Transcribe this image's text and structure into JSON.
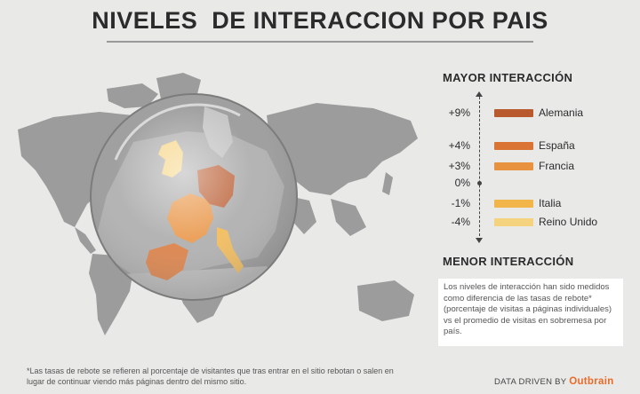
{
  "title": "NIVELES  DE INTERACCION POR PAIS",
  "legend": {
    "top_label": "MAYOR INTERACCIÓN",
    "bottom_label": "MENOR INTERACCIÓN",
    "zero_label": "0%"
  },
  "chart_data": {
    "type": "bar",
    "categories": [
      "Alemania",
      "España",
      "Francia",
      "Italia",
      "Reino Unido"
    ],
    "values": [
      9,
      4,
      3,
      -1,
      -4
    ],
    "value_labels": [
      "+9%",
      "+4%",
      "+3%",
      "-1%",
      "-4%"
    ],
    "colors": [
      "#b85a2e",
      "#d97434",
      "#e8913f",
      "#f2b54a",
      "#f5d27d"
    ],
    "title": "NIVELES  DE INTERACCION POR PAIS"
  },
  "note": "Los niveles de interacción han sido medidos como diferencia de las tasas de rebote* (porcentaje de visitas a páginas individuales) vs el promedio de visitas en sobremesa por país.",
  "footnote": "*Las tasas de rebote se refieren al porcentaje de visitantes que tras entrar en el sitio rebotan o salen en lugar de continuar viendo más páginas dentro del mismo sitio.",
  "credit": {
    "prefix": "DATA DRIVEN BY",
    "brand": "Outbrain"
  }
}
